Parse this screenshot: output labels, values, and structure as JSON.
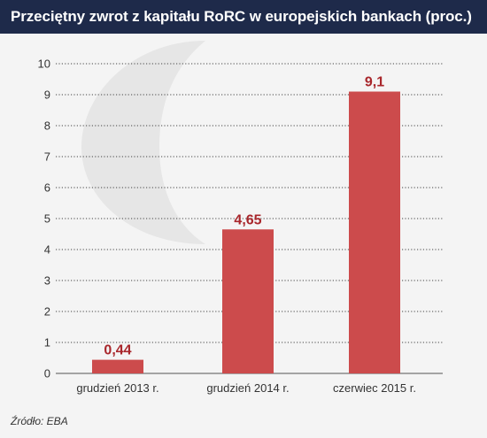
{
  "header": {
    "title": "Przeciętny zwrot z kapitału RoRC w europejskich bankach (proc.)"
  },
  "footer": {
    "source": "Źródło: EBA"
  },
  "colors": {
    "header_bg": "#1e2a4a",
    "bar": "#cc4b4c",
    "label": "#a8262b",
    "background": "#f4f4f4",
    "watermark": "#e6e6e6"
  },
  "chart_data": {
    "type": "bar",
    "title": "Przeciętny zwrot z kapitału RoRC w europejskich bankach (proc.)",
    "categories": [
      "grudzień 2013 r.",
      "grudzień 2014 r.",
      "czerwiec 2015 r."
    ],
    "values": [
      0.44,
      4.65,
      9.1
    ],
    "data_labels": [
      "0,44",
      "4,65",
      "9,1"
    ],
    "y_ticks": [
      0,
      1,
      2,
      3,
      4,
      5,
      6,
      7,
      8,
      9,
      10
    ],
    "ylim": [
      0,
      10
    ],
    "xlabel": "",
    "ylabel": "",
    "grid": true,
    "legend": "none"
  }
}
